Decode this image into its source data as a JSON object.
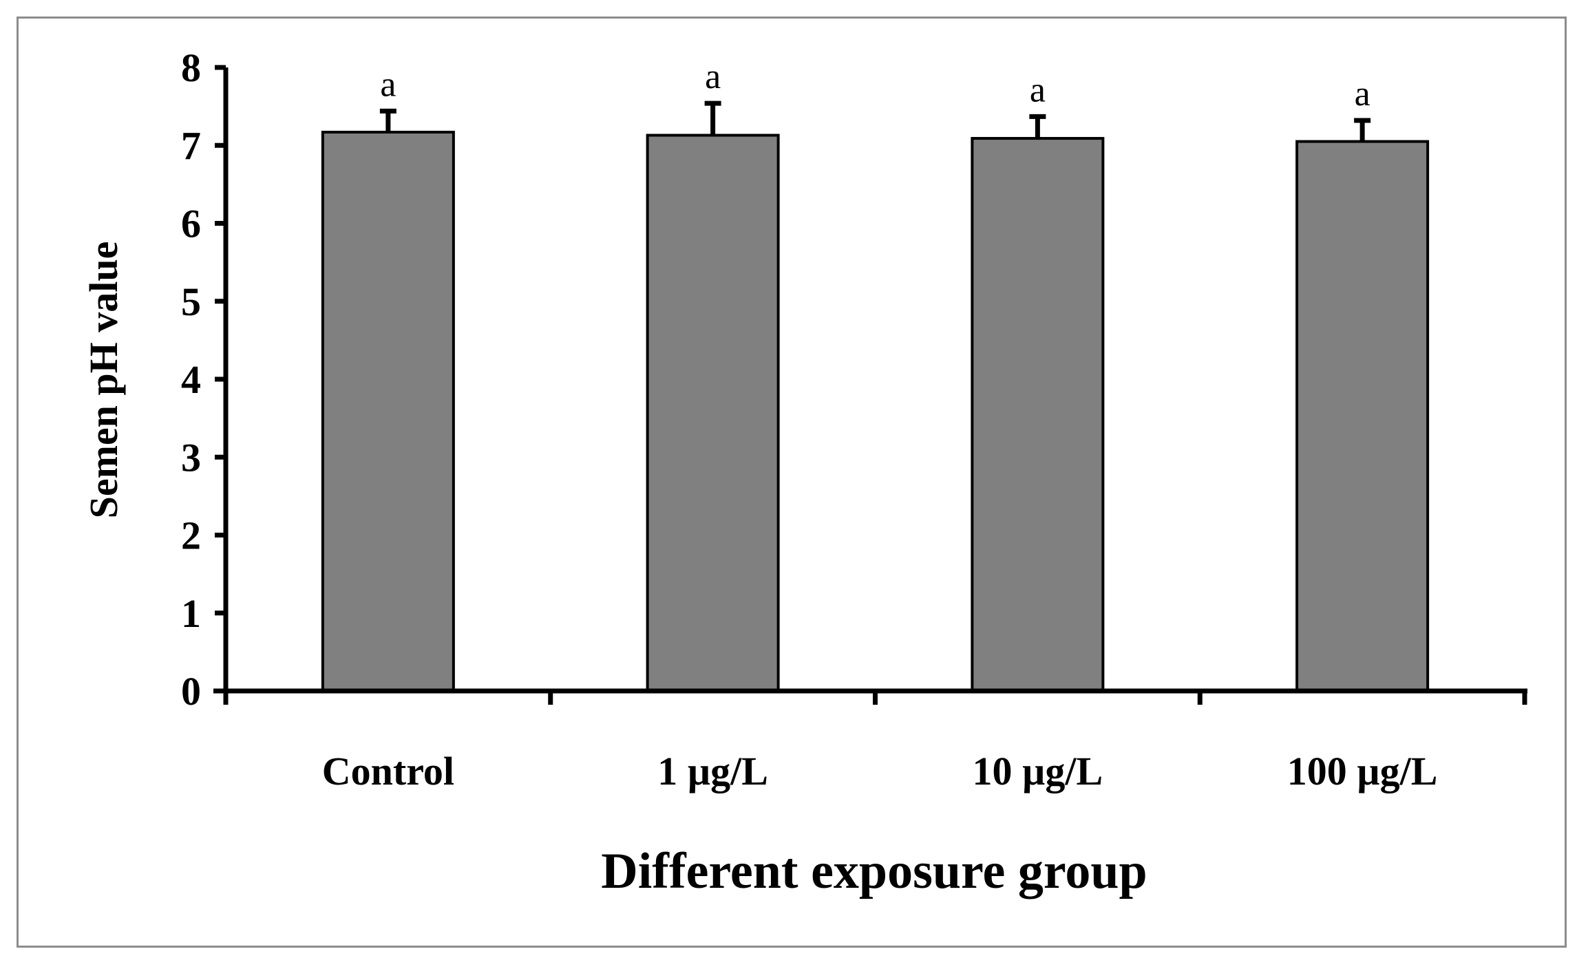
{
  "chart_data": {
    "type": "bar",
    "title": "",
    "xlabel": "Different exposure group",
    "ylabel": "Semen pH value",
    "categories": [
      "Control",
      "1 µg/L",
      "10 µg/L",
      "100 µg/L"
    ],
    "values": [
      7.17,
      7.13,
      7.09,
      7.05
    ],
    "errors": [
      0.27,
      0.41,
      0.28,
      0.27
    ],
    "significance_labels": [
      "a",
      "a",
      "a",
      "a"
    ],
    "ylim": [
      0,
      8
    ],
    "yticks": [
      "0",
      "1",
      "2",
      "3",
      "4",
      "5",
      "6",
      "7",
      "8"
    ],
    "grid": false,
    "bar_color": "#808080",
    "axis_color": "#000000",
    "frame_color": "#8c8c8c"
  }
}
